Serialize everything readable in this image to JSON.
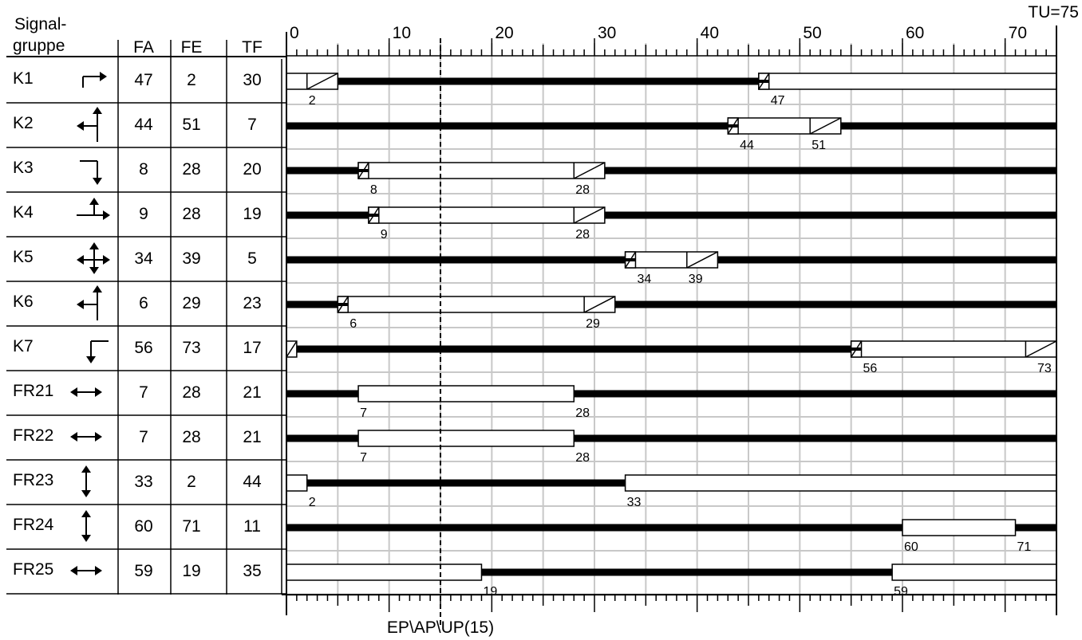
{
  "header": {
    "group_line1": "Signal-",
    "group_line2": "gruppe",
    "fa": "FA",
    "fe": "FE",
    "tf": "TF",
    "tu": "TU=75"
  },
  "axis": {
    "start": 0,
    "end": 75,
    "major_tick_labels": [
      "0",
      "10",
      "20",
      "30",
      "40",
      "50",
      "60",
      "70"
    ]
  },
  "reference_line": {
    "time": 15,
    "label": "EP\\AP\\UP(15)"
  },
  "rows": [
    {
      "name": "K1",
      "fa": 47,
      "fe": 2,
      "tf": 30,
      "icon": "right-turn-arrow-icon",
      "green": [
        {
          "start": 0,
          "end": 5,
          "amber_end": true
        },
        {
          "start": 46,
          "end": 75,
          "redamber_start": true
        }
      ],
      "labels": [
        {
          "text": "2",
          "t": 2
        },
        {
          "text": "47",
          "t": 47
        }
      ]
    },
    {
      "name": "K2",
      "fa": 44,
      "fe": 51,
      "tf": 7,
      "icon": "straight-left-arrow-icon",
      "green": [
        {
          "start": 43,
          "end": 54,
          "redamber_start": true,
          "amber_end": true
        }
      ],
      "labels": [
        {
          "text": "44",
          "t": 44
        },
        {
          "text": "51",
          "t": 51
        }
      ]
    },
    {
      "name": "K3",
      "fa": 8,
      "fe": 28,
      "tf": 20,
      "icon": "right-down-arrow-icon",
      "green": [
        {
          "start": 7,
          "end": 31,
          "redamber_start": true,
          "amber_end": true
        }
      ],
      "labels": [
        {
          "text": "8",
          "t": 8
        },
        {
          "text": "28",
          "t": 28
        }
      ]
    },
    {
      "name": "K4",
      "fa": 9,
      "fe": 28,
      "tf": 19,
      "icon": "straight-right-arrow-icon",
      "green": [
        {
          "start": 8,
          "end": 31,
          "redamber_start": true,
          "amber_end": true
        }
      ],
      "labels": [
        {
          "text": "9",
          "t": 9
        },
        {
          "text": "28",
          "t": 28
        }
      ]
    },
    {
      "name": "K5",
      "fa": 34,
      "fe": 39,
      "tf": 5,
      "icon": "all-directions-arrow-icon",
      "green": [
        {
          "start": 33,
          "end": 42,
          "redamber_start": true,
          "amber_end": true
        }
      ],
      "labels": [
        {
          "text": "34",
          "t": 34
        },
        {
          "text": "39",
          "t": 39
        }
      ]
    },
    {
      "name": "K6",
      "fa": 6,
      "fe": 29,
      "tf": 23,
      "icon": "straight-left-arrow-icon",
      "green": [
        {
          "start": 5,
          "end": 32,
          "redamber_start": true,
          "amber_end": true
        }
      ],
      "labels": [
        {
          "text": "6",
          "t": 6
        },
        {
          "text": "29",
          "t": 29
        }
      ]
    },
    {
      "name": "K7",
      "fa": 56,
      "fe": 73,
      "tf": 17,
      "icon": "left-down-arrow-icon",
      "green": [
        {
          "start": 0,
          "end": 1,
          "amber_only": true
        },
        {
          "start": 55,
          "end": 75,
          "redamber_start": true,
          "amber_end": true
        }
      ],
      "labels": [
        {
          "text": "56",
          "t": 56
        },
        {
          "text": "73",
          "t": 73
        }
      ]
    },
    {
      "name": "FR21",
      "fa": 7,
      "fe": 28,
      "tf": 21,
      "icon": "horizontal-double-arrow-icon",
      "green": [
        {
          "start": 7,
          "end": 28
        }
      ],
      "labels": [
        {
          "text": "7",
          "t": 7
        },
        {
          "text": "28",
          "t": 28
        }
      ]
    },
    {
      "name": "FR22",
      "fa": 7,
      "fe": 28,
      "tf": 21,
      "icon": "horizontal-double-arrow-icon",
      "green": [
        {
          "start": 7,
          "end": 28
        }
      ],
      "labels": [
        {
          "text": "7",
          "t": 7
        },
        {
          "text": "28",
          "t": 28
        }
      ]
    },
    {
      "name": "FR23",
      "fa": 33,
      "fe": 2,
      "tf": 44,
      "icon": "vertical-double-arrow-icon",
      "green": [
        {
          "start": 0,
          "end": 2
        },
        {
          "start": 33,
          "end": 75
        }
      ],
      "labels": [
        {
          "text": "2",
          "t": 2
        },
        {
          "text": "33",
          "t": 33
        }
      ]
    },
    {
      "name": "FR24",
      "fa": 60,
      "fe": 71,
      "tf": 11,
      "icon": "vertical-double-arrow-icon",
      "green": [
        {
          "start": 60,
          "end": 71
        }
      ],
      "labels": [
        {
          "text": "60",
          "t": 60
        },
        {
          "text": "71",
          "t": 71
        }
      ]
    },
    {
      "name": "FR25",
      "fa": 59,
      "fe": 19,
      "tf": 35,
      "icon": "horizontal-double-arrow-icon",
      "green": [
        {
          "start": 0,
          "end": 19
        },
        {
          "start": 59,
          "end": 75
        }
      ],
      "labels": [
        {
          "text": "19",
          "t": 19
        },
        {
          "text": "59",
          "t": 59
        }
      ]
    }
  ]
}
